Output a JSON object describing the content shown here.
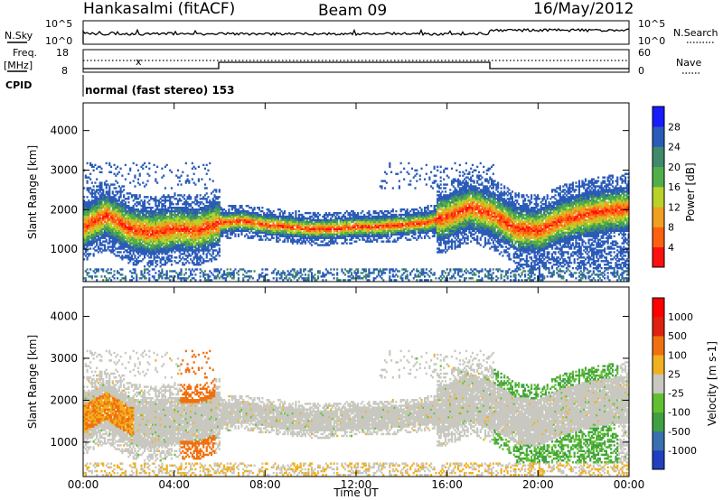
{
  "header": {
    "station": "Hankasalmi (fitACF)",
    "beam": "Beam 09",
    "date": "16/May/2012"
  },
  "top_panels": {
    "nsky_label": "N.Sky",
    "nsky_ticks": [
      "10^5",
      "10^0"
    ],
    "nsearch_label": "N.Search",
    "nsearch_ticks": [
      "10^5",
      "10^0"
    ],
    "freq_label_1": "Freq.",
    "freq_label_2": "[MHz]",
    "freq_ticks": [
      "18",
      "8"
    ],
    "nave_label": "Nave",
    "nave_ticks": [
      "60",
      "0"
    ],
    "cpid_label": "CPID",
    "cpid_text": "normal (fast stereo) 153"
  },
  "chart_data": [
    {
      "type": "heatmap",
      "title": "",
      "xlabel": "Time UT",
      "ylabel": "Slant Range [km]",
      "x_ticks": [
        "00:00",
        "04:00",
        "08:00",
        "12:00",
        "16:00",
        "20:00",
        "00:00"
      ],
      "x_range_hours": [
        0,
        24
      ],
      "y_ticks": [
        1000,
        2000,
        3000,
        4000
      ],
      "ylim": [
        180,
        4700
      ],
      "colorbar": {
        "label": "Power [dB]",
        "ticks": [
          "4",
          "8",
          "12",
          "16",
          "20",
          "24",
          "28"
        ],
        "colors": [
          "#1a1aff",
          "#2a5bb8",
          "#3f8a6a",
          "#4fb04a",
          "#b8d22a",
          "#f0a020",
          "#ff6010",
          "#ff1010"
        ]
      },
      "series": [
        {
          "hours": [
            0,
            1,
            2,
            3,
            4,
            5,
            6,
            7,
            8,
            9,
            10,
            11,
            12,
            13,
            14,
            15,
            16,
            17,
            18,
            19,
            20,
            21,
            22,
            23,
            24
          ],
          "core_km": [
            1550,
            1850,
            1500,
            1400,
            1500,
            1450,
            1650,
            1700,
            1600,
            1550,
            1500,
            1500,
            1550,
            1550,
            1600,
            1650,
            1800,
            2050,
            1850,
            1500,
            1450,
            1700,
            1850,
            1950,
            2000
          ]
        }
      ]
    },
    {
      "type": "heatmap",
      "title": "",
      "xlabel": "Time UT",
      "ylabel": "Slant Range [km]",
      "x_ticks": [
        "00:00",
        "04:00",
        "08:00",
        "12:00",
        "16:00",
        "20:00",
        "00:00"
      ],
      "x_range_hours": [
        0,
        24
      ],
      "y_ticks": [
        1000,
        2000,
        3000,
        4000
      ],
      "ylim": [
        180,
        4700
      ],
      "colorbar": {
        "label": "Velocity [m s-1]",
        "ticks": [
          "1000",
          "500",
          "100",
          "25",
          "-25",
          "-100",
          "-500",
          "-1000"
        ],
        "colors": [
          "#2040c0",
          "#3a70b0",
          "#40a040",
          "#60c030",
          "#c8c8c0",
          "#f0b020",
          "#f07010",
          "#e02010",
          "#ff0000"
        ]
      }
    }
  ]
}
